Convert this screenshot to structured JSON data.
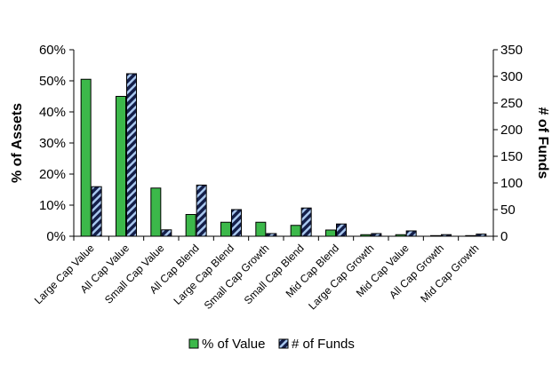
{
  "chart_data": {
    "type": "bar",
    "categories": [
      "Large Cap Value",
      "All Cap Value",
      "Small Cap Value",
      "All Cap Blend",
      "Large Cap Blend",
      "Small Cap Growth",
      "Small Cap Blend",
      "Mid Cap Blend",
      "Large Cap Growth",
      "Mid Cap Value",
      "All Cap Growth",
      "Mid Cap Growth"
    ],
    "series": [
      {
        "name": "% of Value",
        "axis": "left",
        "color": "#3cb84a",
        "pattern": "solid",
        "values": [
          0.505,
          0.45,
          0.155,
          0.07,
          0.045,
          0.045,
          0.035,
          0.02,
          0.005,
          0.005,
          0.002,
          0.002
        ]
      },
      {
        "name": "# of Funds",
        "axis": "right",
        "color": "#1a2a5c",
        "pattern": "diagonal-stripes",
        "values": [
          93,
          305,
          12,
          96,
          50,
          5,
          53,
          23,
          5,
          10,
          3,
          4
        ]
      }
    ],
    "y_left": {
      "label": "% of Assets",
      "range": [
        0,
        0.6
      ],
      "ticks": [
        0,
        0.1,
        0.2,
        0.3,
        0.4,
        0.5,
        0.6
      ],
      "tick_labels": [
        "0%",
        "10%",
        "20%",
        "30%",
        "40%",
        "50%",
        "60%"
      ]
    },
    "y_right": {
      "label": "# of Funds",
      "range": [
        0,
        350
      ],
      "ticks": [
        0,
        50,
        100,
        150,
        200,
        250,
        300,
        350
      ],
      "tick_labels": [
        "0",
        "50",
        "100",
        "150",
        "200",
        "250",
        "300",
        "350"
      ]
    },
    "grid": false,
    "legend": "bottom"
  }
}
